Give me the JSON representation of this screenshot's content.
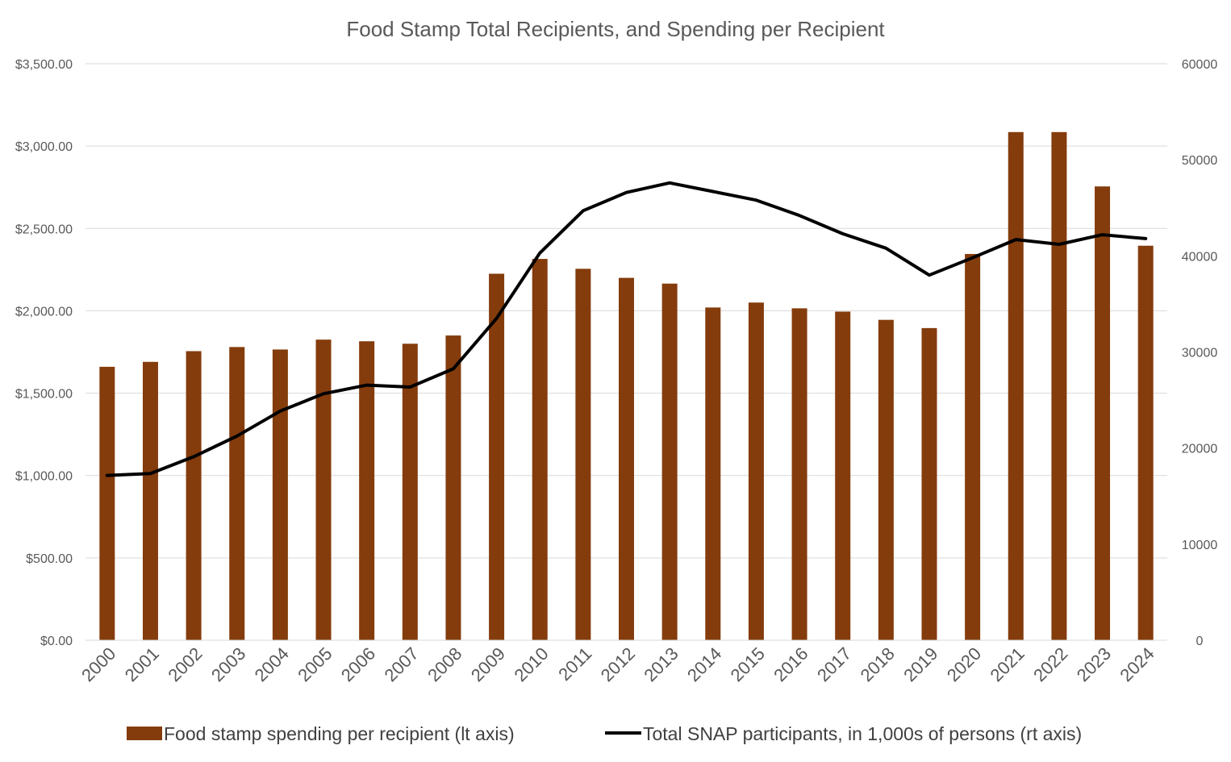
{
  "chart_data": {
    "type": "bar",
    "title": "Food Stamp Total Recipients, and Spending per Recipient",
    "categories": [
      "2000",
      "2001",
      "2002",
      "2003",
      "2004",
      "2005",
      "2006",
      "2007",
      "2008",
      "2009",
      "2010",
      "2011",
      "2012",
      "2013",
      "2014",
      "2015",
      "2016",
      "2017",
      "2018",
      "2019",
      "2020",
      "2021",
      "2022",
      "2023",
      "2024"
    ],
    "left_axis": {
      "min": 0,
      "max": 3500,
      "step": 500,
      "tick_labels": [
        "$0.00",
        "$500.00",
        "$1,000.00",
        "$1,500.00",
        "$2,000.00",
        "$2,500.00",
        "$3,000.00",
        "$3,500.00"
      ]
    },
    "right_axis": {
      "min": 0,
      "max": 60000,
      "step": 10000,
      "tick_labels": [
        "0",
        "10000",
        "20000",
        "30000",
        "40000",
        "50000",
        "60000"
      ]
    },
    "grid": true,
    "legend_position": "bottom",
    "series": [
      {
        "name": "Food stamp spending per recipient (lt axis)",
        "type": "bar",
        "axis": "left",
        "color": "#843C0C",
        "values": [
          1660,
          1690,
          1755,
          1780,
          1765,
          1825,
          1815,
          1800,
          1850,
          2225,
          2315,
          2255,
          2200,
          2165,
          2020,
          2050,
          2015,
          1995,
          1945,
          1895,
          2345,
          3085,
          3085,
          2755,
          2395
        ]
      },
      {
        "name": "Total SNAP participants, in 1,000s of persons (rt axis)",
        "type": "line",
        "axis": "right",
        "color": "#000000",
        "values": [
          17150,
          17350,
          19100,
          21250,
          23850,
          25650,
          26550,
          26350,
          28250,
          33500,
          40300,
          44700,
          46600,
          47600,
          46700,
          45800,
          44200,
          42300,
          40800,
          38000,
          39800,
          41700,
          41200,
          42200,
          41800
        ]
      }
    ]
  }
}
